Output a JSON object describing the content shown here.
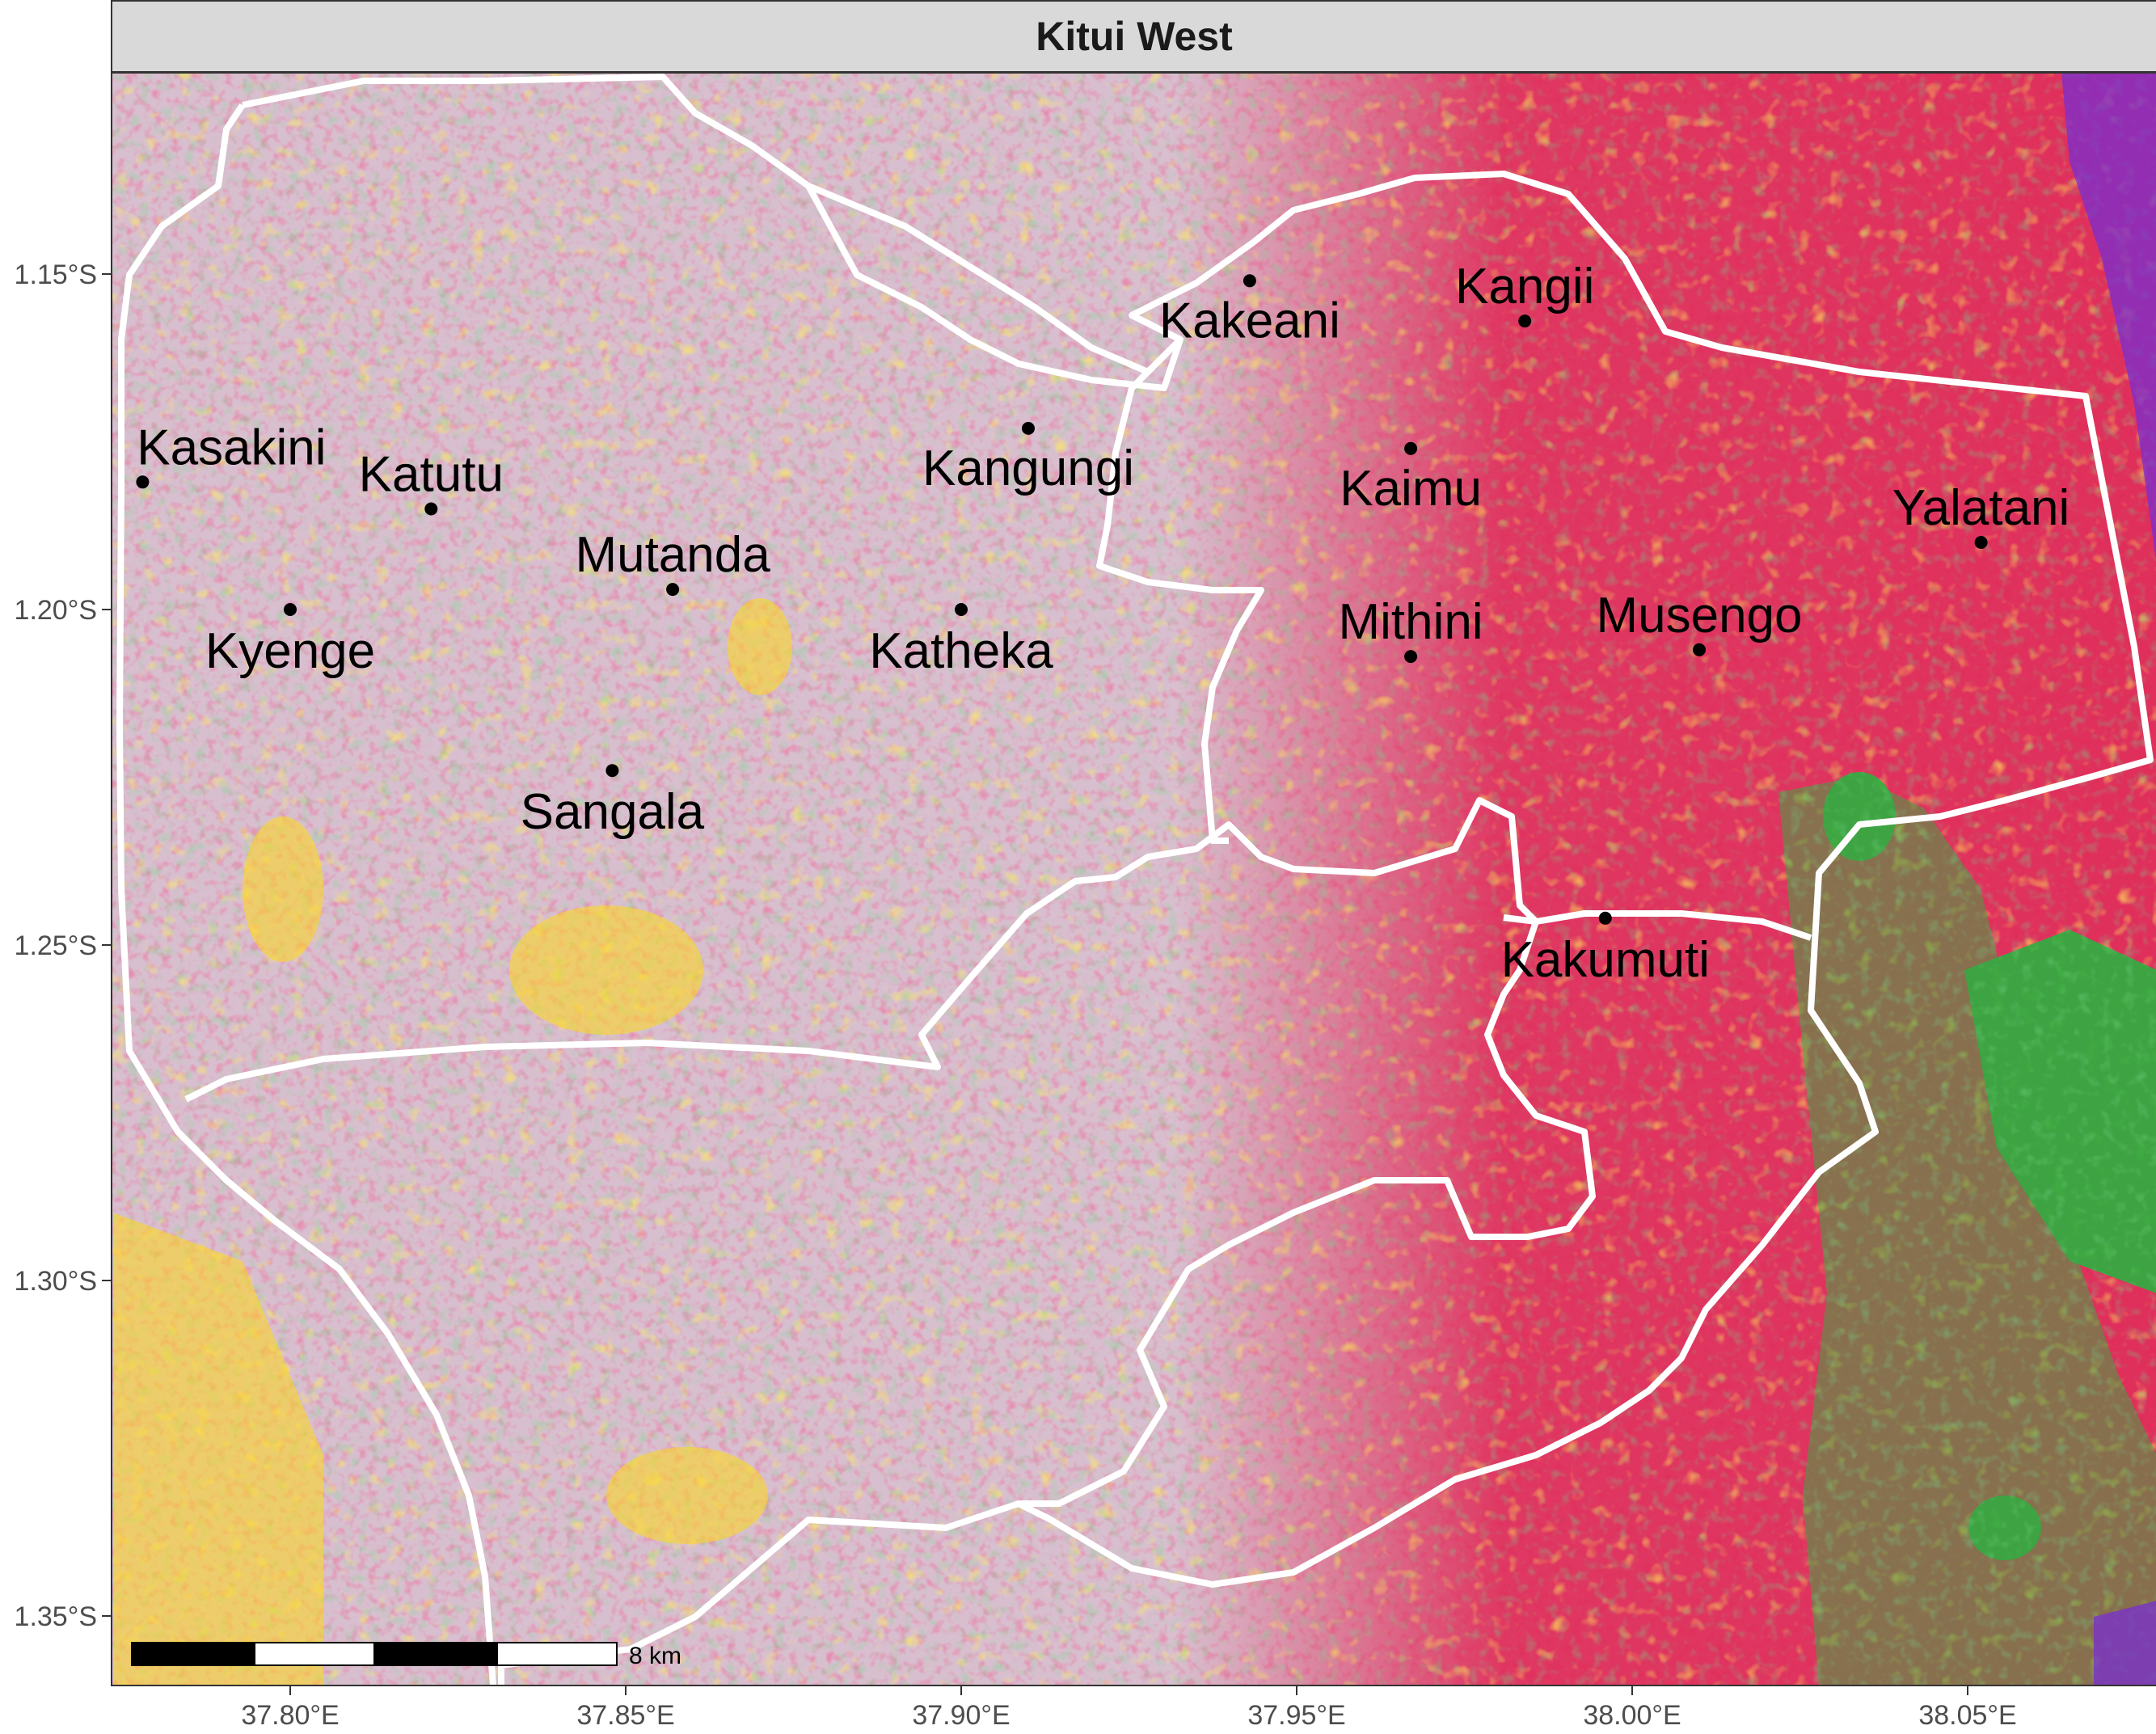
{
  "panel_title": "Kitui West",
  "colors": {
    "background_land": "#d8bfcf",
    "cropland_red": "#e0204f",
    "bare_yellow": "#ffd81a",
    "tree_green": "#2db040",
    "dark_green": "#3f7a3a",
    "water_purple": "#7a2ed0",
    "boundary": "#ffffff",
    "strip_fill": "#d9d9d9"
  },
  "axes": {
    "x_ticks": [
      "37.80°E",
      "37.85°E",
      "37.90°E",
      "37.95°E",
      "38.00°E",
      "38.05°E"
    ],
    "y_ticks": [
      "1.15°S",
      "1.20°S",
      "1.25°S",
      "1.30°S",
      "1.35°S"
    ]
  },
  "places": [
    {
      "name": "Kasakini",
      "lon": 37.778,
      "lat": -1.181
    },
    {
      "name": "Katutu",
      "lon": 37.821,
      "lat": -1.185
    },
    {
      "name": "Mutanda",
      "lon": 37.857,
      "lat": -1.197
    },
    {
      "name": "Kyenge",
      "lon": 37.8,
      "lat": -1.2
    },
    {
      "name": "Kangungi",
      "lon": 37.91,
      "lat": -1.173
    },
    {
      "name": "Katheka",
      "lon": 37.9,
      "lat": -1.2
    },
    {
      "name": "Sangala",
      "lon": 37.848,
      "lat": -1.224
    },
    {
      "name": "Kakeani",
      "lon": 37.943,
      "lat": -1.151
    },
    {
      "name": "Kangii",
      "lon": 37.984,
      "lat": -1.157
    },
    {
      "name": "Kaimu",
      "lon": 37.967,
      "lat": -1.176
    },
    {
      "name": "Mithini",
      "lon": 37.967,
      "lat": -1.207
    },
    {
      "name": "Musengo",
      "lon": 38.01,
      "lat": -1.206
    },
    {
      "name": "Yalatani",
      "lon": 38.052,
      "lat": -1.19
    },
    {
      "name": "Kakumuti",
      "lon": 37.996,
      "lat": -1.246
    }
  ],
  "scale_bar": {
    "label": "8 km"
  }
}
